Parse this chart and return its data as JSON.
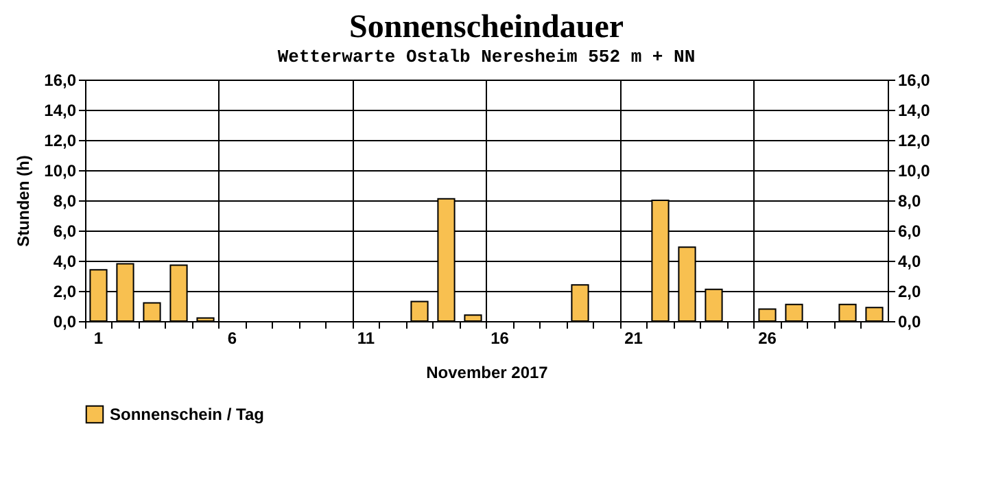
{
  "chart_data": {
    "type": "bar",
    "title": "Sonnenscheindauer",
    "subtitle": "Wetterwarte Ostalb Neresheim 552 m + NN",
    "xlabel": "November 2017",
    "ylabel": "Stunden  (h)",
    "categories": [
      "1",
      null,
      null,
      null,
      null,
      "6",
      null,
      null,
      null,
      null,
      "11",
      null,
      null,
      null,
      null,
      "16",
      null,
      null,
      null,
      null,
      "21",
      null,
      null,
      null,
      null,
      "26",
      null,
      null,
      null,
      null
    ],
    "series": [
      {
        "name": "Sonnenschein / Tag",
        "color": "#f8c050",
        "values": [
          3.4,
          3.8,
          1.2,
          3.7,
          0.2,
          null,
          null,
          null,
          null,
          null,
          null,
          null,
          1.3,
          8.1,
          0.4,
          null,
          null,
          null,
          2.4,
          null,
          null,
          8.0,
          4.9,
          2.1,
          null,
          0.8,
          1.1,
          null,
          1.1,
          0.9
        ]
      }
    ],
    "ylim": [
      0,
      16
    ],
    "yticks": [
      {
        "value": 0,
        "label": "0,0"
      },
      {
        "value": 2,
        "label": "2,0"
      },
      {
        "value": 4,
        "label": "4,0"
      },
      {
        "value": 6,
        "label": "6,0"
      },
      {
        "value": 8,
        "label": "8,0"
      },
      {
        "value": 10,
        "label": "10,0"
      },
      {
        "value": 12,
        "label": "12,0"
      },
      {
        "value": 14,
        "label": "14,0"
      },
      {
        "value": 16,
        "label": "16,0"
      }
    ],
    "y2lim": [
      0,
      16
    ],
    "y2ticks": [
      {
        "value": 0,
        "label": "0,0"
      },
      {
        "value": 2,
        "label": "2,0"
      },
      {
        "value": 4,
        "label": "4,0"
      },
      {
        "value": 6,
        "label": "6,0"
      },
      {
        "value": 8,
        "label": "8,0"
      },
      {
        "value": 10,
        "label": "10,0"
      },
      {
        "value": 12,
        "label": "12,0"
      },
      {
        "value": 14,
        "label": "14,0"
      },
      {
        "value": 16,
        "label": "16,0"
      }
    ],
    "grid": true,
    "legend": "bottom"
  }
}
